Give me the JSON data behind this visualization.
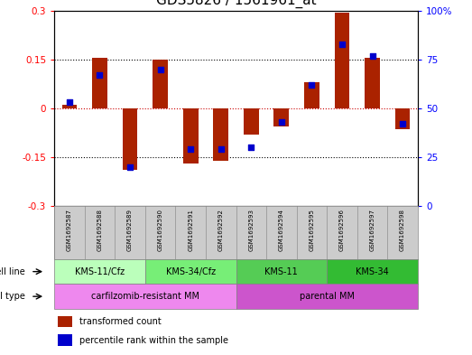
{
  "title": "GDS5826 / 1561961_at",
  "samples": [
    "GSM1692587",
    "GSM1692588",
    "GSM1692589",
    "GSM1692590",
    "GSM1692591",
    "GSM1692592",
    "GSM1692593",
    "GSM1692594",
    "GSM1692595",
    "GSM1692596",
    "GSM1692597",
    "GSM1692598"
  ],
  "transformed_count": [
    0.01,
    0.155,
    -0.19,
    0.15,
    -0.17,
    -0.16,
    -0.08,
    -0.055,
    0.08,
    0.295,
    0.155,
    -0.065
  ],
  "percentile_rank": [
    53,
    67,
    20,
    70,
    29,
    29,
    30,
    43,
    62,
    83,
    77,
    42
  ],
  "ylim_left": [
    -0.3,
    0.3
  ],
  "ylim_right": [
    0,
    100
  ],
  "yticks_left": [
    -0.3,
    -0.15,
    0.0,
    0.15,
    0.3
  ],
  "yticks_right": [
    0,
    25,
    50,
    75,
    100
  ],
  "ytick_labels_left": [
    "-0.3",
    "-0.15",
    "0",
    "0.15",
    "0.3"
  ],
  "ytick_labels_right": [
    "0",
    "25",
    "50",
    "75",
    "100%"
  ],
  "bar_color": "#aa2200",
  "dot_color": "#0000cc",
  "cell_line_groups": [
    {
      "label": "KMS-11/Cfz",
      "start": 0,
      "end": 3,
      "color": "#bbffbb"
    },
    {
      "label": "KMS-34/Cfz",
      "start": 3,
      "end": 6,
      "color": "#77ee77"
    },
    {
      "label": "KMS-11",
      "start": 6,
      "end": 9,
      "color": "#55cc55"
    },
    {
      "label": "KMS-34",
      "start": 9,
      "end": 12,
      "color": "#33bb33"
    }
  ],
  "cell_type_groups": [
    {
      "label": "carfilzomib-resistant MM",
      "start": 0,
      "end": 6,
      "color": "#ee88ee"
    },
    {
      "label": "parental MM",
      "start": 6,
      "end": 12,
      "color": "#cc55cc"
    }
  ],
  "cell_line_label": "cell line",
  "cell_type_label": "cell type",
  "legend_items": [
    {
      "label": "transformed count",
      "color": "#aa2200"
    },
    {
      "label": "percentile rank within the sample",
      "color": "#0000cc"
    }
  ],
  "background_color": "#ffffff",
  "sample_bg_color": "#cccccc",
  "zero_line_color": "#cc0000",
  "title_fontsize": 11,
  "tick_fontsize": 7.5,
  "label_fontsize": 7
}
